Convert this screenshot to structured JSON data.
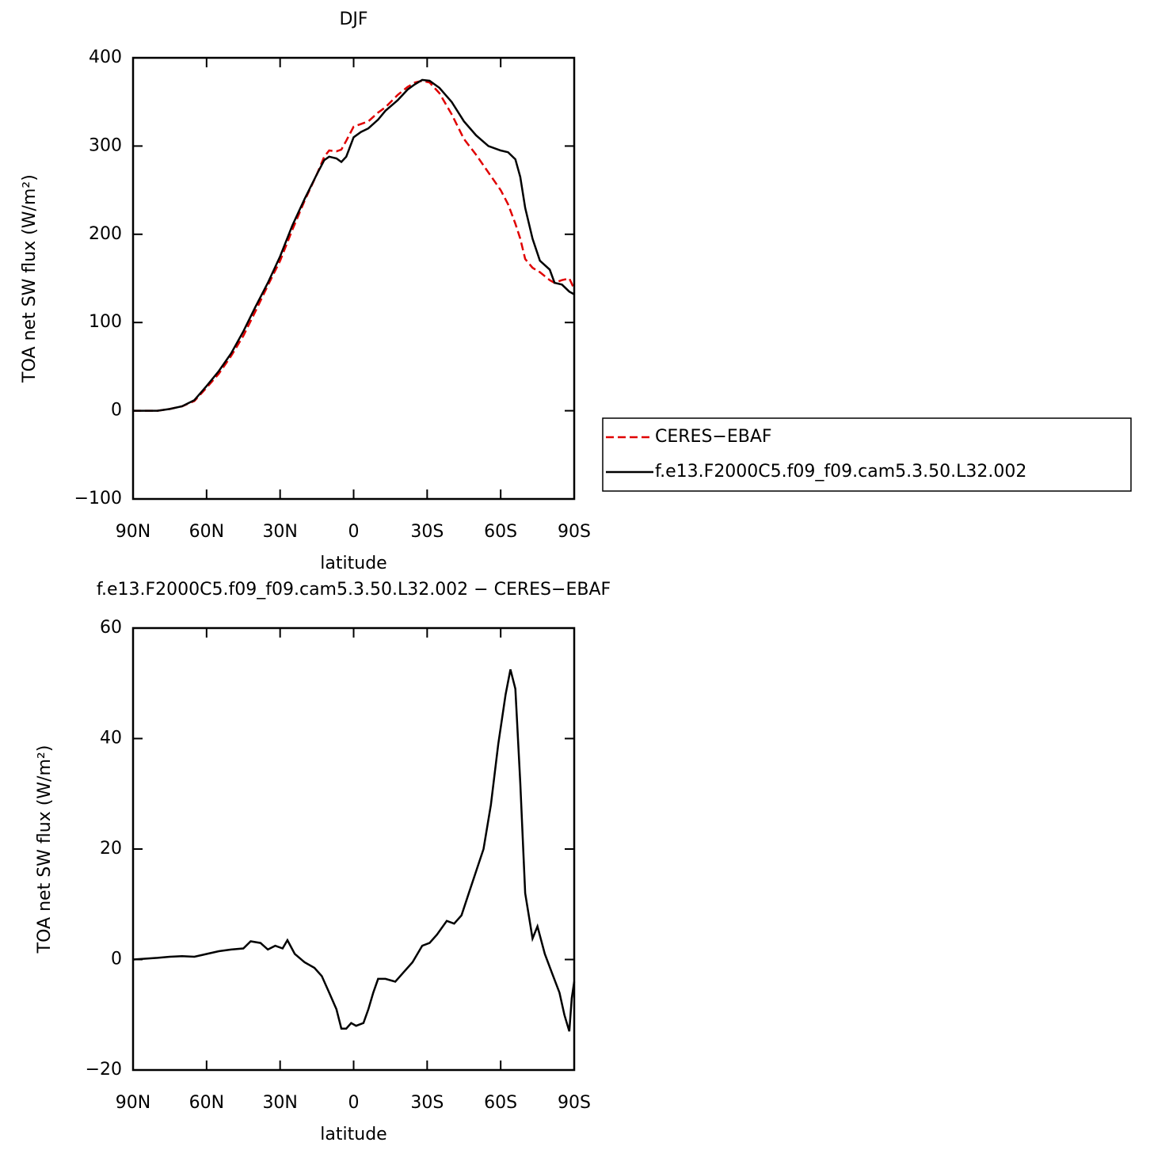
{
  "chart_data": [
    {
      "type": "line",
      "title": "DJF",
      "xlabel": "latitude",
      "ylabel": "TOA net SW flux (W/m²)",
      "xlim": [
        90,
        -90
      ],
      "xticks": [
        {
          "value": 90,
          "label": "90N"
        },
        {
          "value": 60,
          "label": "60N"
        },
        {
          "value": 30,
          "label": "30N"
        },
        0,
        {
          "value": -30,
          "label": "30S"
        },
        {
          "value": -60,
          "label": "60S"
        },
        {
          "value": -90,
          "label": "90S"
        }
      ],
      "ylim": [
        -100,
        400
      ],
      "yticks": [
        {
          "value": -100,
          "label": "−100"
        },
        0,
        100,
        200,
        300,
        400
      ],
      "legend": "right",
      "x": [
        90,
        85,
        80,
        75,
        70,
        65,
        60,
        55,
        50,
        45,
        40,
        35,
        30,
        25,
        20,
        15,
        12,
        10,
        7,
        5,
        3,
        0,
        -3,
        -6,
        -10,
        -13,
        -18,
        -22,
        -25,
        -28,
        -31,
        -35,
        -40,
        -45,
        -50,
        -55,
        -60,
        -63,
        -66,
        -68,
        -70,
        -73,
        -76,
        -80,
        -82,
        -85,
        -88,
        -90
      ],
      "series": [
        {
          "name": "CERES−EBAF",
          "color": "#e00000",
          "line_style": "dashed",
          "values": [
            0,
            0,
            0,
            2,
            5,
            11,
            26,
            42,
            62,
            85,
            113,
            142,
            170,
            205,
            238,
            268,
            288,
            295,
            294,
            296,
            306,
            322,
            325,
            328,
            338,
            344,
            358,
            367,
            372,
            374,
            372,
            360,
            336,
            308,
            290,
            270,
            250,
            234,
            212,
            195,
            172,
            162,
            157,
            148,
            145,
            148,
            150,
            138
          ]
        },
        {
          "name": "f.e13.F2000C5.f09_f09.cam5.3.50.L32.002",
          "color": "#000000",
          "line_style": "solid",
          "values": [
            0,
            0,
            0,
            2,
            5,
            12,
            28,
            45,
            65,
            90,
            118,
            145,
            175,
            210,
            240,
            268,
            284,
            288,
            286,
            282,
            288,
            310,
            316,
            320,
            330,
            340,
            352,
            364,
            370,
            375,
            374,
            366,
            350,
            328,
            312,
            300,
            295,
            293,
            285,
            265,
            230,
            195,
            170,
            160,
            145,
            143,
            135,
            132
          ]
        }
      ]
    },
    {
      "type": "line",
      "title": "f.e13.F2000C5.f09_f09.cam5.3.50.L32.002 − CERES−EBAF",
      "xlabel": "latitude",
      "ylabel": "TOA net SW flux (W/m²)",
      "xlim": [
        90,
        -90
      ],
      "xticks": [
        {
          "value": 90,
          "label": "90N"
        },
        {
          "value": 60,
          "label": "60N"
        },
        {
          "value": 30,
          "label": "30N"
        },
        0,
        {
          "value": -30,
          "label": "30S"
        },
        {
          "value": -60,
          "label": "60S"
        },
        {
          "value": -90,
          "label": "90S"
        }
      ],
      "ylim": [
        -20,
        60
      ],
      "yticks": [
        {
          "value": -20,
          "label": "−20"
        },
        0,
        20,
        40,
        60
      ],
      "x": [
        90,
        80,
        75,
        70,
        65,
        60,
        55,
        50,
        45,
        42,
        38,
        35,
        32,
        29,
        27,
        24,
        20,
        16,
        13,
        10,
        7,
        5,
        3,
        1,
        -1,
        -4,
        -6,
        -8,
        -10,
        -13,
        -17,
        -20,
        -24,
        -28,
        -31,
        -34,
        -38,
        -41,
        -44,
        -47,
        -50,
        -53,
        -56,
        -59,
        -62,
        -64,
        -66,
        -68,
        -70,
        -73,
        -75,
        -78,
        -81,
        -84,
        -86,
        -88,
        -89,
        -90
      ],
      "series": [
        {
          "color": "#000000",
          "line_style": "solid",
          "values": [
            0,
            0.3,
            0.5,
            0.6,
            0.5,
            1,
            1.5,
            1.8,
            2,
            3.3,
            3,
            1.8,
            2.5,
            2,
            3.5,
            1,
            -0.5,
            -1.5,
            -3,
            -6,
            -9,
            -12.5,
            -12.5,
            -11.5,
            -12,
            -11.5,
            -9,
            -6,
            -3.5,
            -3.5,
            -4,
            -2.5,
            -0.5,
            2.5,
            3,
            4.5,
            7,
            6.5,
            8,
            12,
            16,
            20,
            28,
            39,
            48,
            52.5,
            49,
            32,
            12,
            3.8,
            6,
            1,
            -2.5,
            -6,
            -10,
            -13,
            -7,
            -4
          ]
        }
      ]
    }
  ]
}
